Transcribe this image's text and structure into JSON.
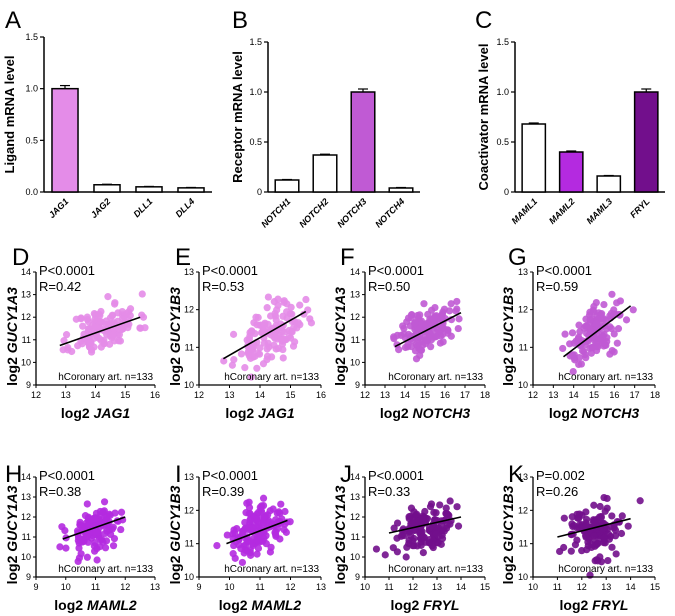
{
  "colors": {
    "light": "#e48ce8",
    "mid": "#c05ad4",
    "magenta": "#b42ae0",
    "dark": "#720f8c",
    "axis": "#000000"
  },
  "chart_data": [
    {
      "id": "A",
      "letter": "A",
      "type": "bar",
      "ylabel": "Ligand mRNA level",
      "ylim": [
        0,
        1.5
      ],
      "yticks": [
        "0.0",
        "0.5",
        "1.0",
        "1.5"
      ],
      "categories": [
        "JAG1",
        "JAG2",
        "DLL1",
        "DLL4"
      ],
      "values": [
        1.0,
        0.07,
        0.05,
        0.04
      ],
      "errors": [
        0.03,
        0.005,
        0.004,
        0.004
      ],
      "fills": [
        "light",
        "white",
        "white",
        "white"
      ]
    },
    {
      "id": "B",
      "letter": "B",
      "type": "bar",
      "ylabel": "Receptor mRNA level",
      "ylim": [
        0,
        1.5
      ],
      "yticks": [
        "0",
        "0.5",
        "1.0",
        "1.5"
      ],
      "categories": [
        "NOTCH1",
        "NOTCH2",
        "NOTCH3",
        "NOTCH4"
      ],
      "values": [
        0.12,
        0.37,
        1.0,
        0.04
      ],
      "errors": [
        0.005,
        0.008,
        0.03,
        0.005
      ],
      "fills": [
        "white",
        "white",
        "mid",
        "white"
      ]
    },
    {
      "id": "C",
      "letter": "C",
      "type": "bar",
      "ylabel": "Coactivator mRNA level",
      "ylim": [
        0,
        1.5
      ],
      "yticks": [
        "0",
        "0.5",
        "1.0",
        "1.5"
      ],
      "categories": [
        "MAML1",
        "MAML2",
        "MAML3",
        "FRYL"
      ],
      "values": [
        0.68,
        0.4,
        0.16,
        1.0
      ],
      "errors": [
        0.01,
        0.01,
        0.005,
        0.03
      ],
      "fills": [
        "white",
        "magenta",
        "white",
        "dark"
      ]
    },
    {
      "id": "D",
      "letter": "D",
      "type": "scatter",
      "gene_x": "JAG1",
      "gene_y": "GUCY1A3",
      "color": "light",
      "p": "P<0.0001",
      "r": "R=0.42",
      "n": "hCoronary art. n=133",
      "xlim": [
        12,
        16
      ],
      "xticks": [
        "12",
        "13",
        "14",
        "15",
        "16"
      ],
      "ylim": [
        9,
        14
      ],
      "yticks": [
        "9",
        "10",
        "11",
        "12",
        "13",
        "14"
      ],
      "fit": [
        [
          12.8,
          10.75
        ],
        [
          15.5,
          12.0
        ]
      ],
      "cx": 14.3,
      "cy": 11.5,
      "sx": 0.55,
      "sy": 0.55,
      "rho": 0.42,
      "seed": 11
    },
    {
      "id": "E",
      "letter": "E",
      "type": "scatter",
      "gene_x": "JAG1",
      "gene_y": "GUCY1B3",
      "color": "light",
      "p": "P<0.0001",
      "r": "R=0.53",
      "n": "hCoronary art. n=133",
      "xlim": [
        12,
        16
      ],
      "xticks": [
        "12",
        "13",
        "14",
        "15",
        "16"
      ],
      "ylim": [
        10,
        13
      ],
      "yticks": [
        "10",
        "11",
        "12",
        "13"
      ],
      "fit": [
        [
          12.8,
          10.7
        ],
        [
          15.5,
          11.95
        ]
      ],
      "cx": 14.3,
      "cy": 11.3,
      "sx": 0.55,
      "sy": 0.4,
      "rho": 0.53,
      "seed": 23
    },
    {
      "id": "F",
      "letter": "F",
      "type": "scatter",
      "gene_x": "NOTCH3",
      "gene_y": "GUCY1A3",
      "color": "mid",
      "p": "P<0.0001",
      "r": "R=0.50",
      "n": "hCoronary art. n=133",
      "xlim": [
        12,
        18
      ],
      "xticks": [
        "12",
        "13",
        "14",
        "15",
        "16",
        "17",
        "18"
      ],
      "ylim": [
        9,
        14
      ],
      "yticks": [
        "9",
        "10",
        "11",
        "12",
        "13",
        "14"
      ],
      "fit": [
        [
          13.5,
          10.7
        ],
        [
          16.8,
          12.2
        ]
      ],
      "cx": 15.1,
      "cy": 11.5,
      "sx": 0.7,
      "sy": 0.55,
      "rho": 0.5,
      "seed": 37
    },
    {
      "id": "G",
      "letter": "G",
      "type": "scatter",
      "gene_x": "NOTCH3",
      "gene_y": "GUCY1B3",
      "color": "mid",
      "p": "P<0.0001",
      "r": "R=0.59",
      "n": "hCoronary art. n=133",
      "xlim": [
        12,
        18
      ],
      "xticks": [
        "12",
        "13",
        "14",
        "15",
        "16",
        "17",
        "18"
      ],
      "ylim": [
        10,
        13
      ],
      "yticks": [
        "10",
        "11",
        "12",
        "13"
      ],
      "fit": [
        [
          13.5,
          10.75
        ],
        [
          16.8,
          12.1
        ]
      ],
      "cx": 15.1,
      "cy": 11.4,
      "sx": 0.7,
      "sy": 0.4,
      "rho": 0.59,
      "seed": 41
    },
    {
      "id": "H",
      "letter": "H",
      "type": "scatter",
      "gene_x": "MAML2",
      "gene_y": "GUCY1A3",
      "color": "magenta",
      "p": "P<0.0001",
      "r": "R=0.38",
      "n": "hCoronary art. n=133",
      "xlim": [
        9,
        13
      ],
      "xticks": [
        "9",
        "10",
        "11",
        "12",
        "13"
      ],
      "ylim": [
        9,
        14
      ],
      "yticks": [
        "9",
        "10",
        "11",
        "12",
        "13",
        "14"
      ],
      "fit": [
        [
          9.9,
          10.9
        ],
        [
          12.0,
          12.0
        ]
      ],
      "cx": 11.0,
      "cy": 11.4,
      "sx": 0.45,
      "sy": 0.6,
      "rho": 0.38,
      "seed": 53
    },
    {
      "id": "I",
      "letter": "I",
      "type": "scatter",
      "gene_x": "MAML2",
      "gene_y": "GUCY1B3",
      "color": "magenta",
      "p": "P<0.0001",
      "r": "R=0.39",
      "n": "hCoronary art. n=133",
      "xlim": [
        9,
        13
      ],
      "xticks": [
        "9",
        "10",
        "11",
        "12",
        "13"
      ],
      "ylim": [
        10,
        13
      ],
      "yticks": [
        "10",
        "11",
        "12",
        "13"
      ],
      "fit": [
        [
          9.9,
          11.0
        ],
        [
          11.9,
          11.7
        ]
      ],
      "cx": 10.9,
      "cy": 11.35,
      "sx": 0.45,
      "sy": 0.4,
      "rho": 0.39,
      "seed": 67
    },
    {
      "id": "J",
      "letter": "J",
      "type": "scatter",
      "gene_x": "FRYL",
      "gene_y": "GUCY1A3",
      "color": "dark",
      "p": "P<0.0001",
      "r": "R=0.33",
      "n": "hCoronary art. n=133",
      "xlim": [
        10,
        15
      ],
      "xticks": [
        "10",
        "11",
        "12",
        "13",
        "14",
        "15"
      ],
      "ylim": [
        9,
        14
      ],
      "yticks": [
        "9",
        "10",
        "11",
        "12",
        "13",
        "14"
      ],
      "fit": [
        [
          11.0,
          11.2
        ],
        [
          14.0,
          12.0
        ]
      ],
      "cx": 12.5,
      "cy": 11.5,
      "sx": 0.65,
      "sy": 0.55,
      "rho": 0.33,
      "seed": 79
    },
    {
      "id": "K",
      "letter": "K",
      "type": "scatter",
      "gene_x": "FRYL",
      "gene_y": "GUCY1B3",
      "color": "dark",
      "p": "P=0.002",
      "r": "R=0.26",
      "n": "hCoronary art. n=133",
      "xlim": [
        10,
        15
      ],
      "xticks": [
        "10",
        "11",
        "12",
        "13",
        "14",
        "15"
      ],
      "ylim": [
        10,
        13
      ],
      "yticks": [
        "10",
        "11",
        "12",
        "13"
      ],
      "fit": [
        [
          11.0,
          11.2
        ],
        [
          14.0,
          11.75
        ]
      ],
      "cx": 12.4,
      "cy": 11.35,
      "sx": 0.65,
      "sy": 0.45,
      "rho": 0.26,
      "seed": 97
    }
  ]
}
